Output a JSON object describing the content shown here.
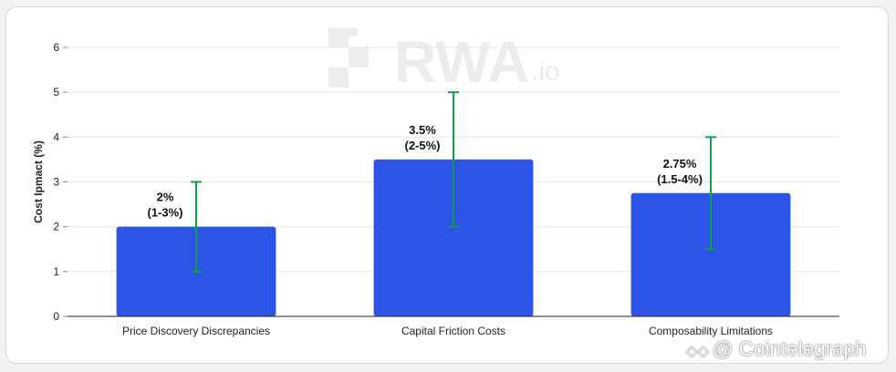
{
  "watermark": {
    "text": "RWA",
    "suffix": ".io"
  },
  "credit": {
    "icon": "cointelegraph-logo-icon",
    "text": "@ Cointelegraph"
  },
  "colors": {
    "bar": "#2c55e8",
    "error_bar": "#159a4e",
    "grid": "#e6e6e6",
    "axis": "#222222",
    "watermark": "#ececec"
  },
  "chart_data": {
    "type": "bar",
    "title": "",
    "xlabel": "",
    "ylabel": "Cost Ipmact (%)",
    "ylim": [
      0,
      6
    ],
    "yticks": [
      0,
      1,
      2,
      3,
      4,
      5,
      6
    ],
    "grid": true,
    "categories": [
      "Price Discovery Discrepancies",
      "Capital Friction Costs",
      "Composability Limitations"
    ],
    "values": [
      2,
      3.5,
      2.75
    ],
    "error_low": [
      1,
      2,
      1.5
    ],
    "error_high": [
      3,
      5,
      4
    ],
    "data_labels": [
      [
        "2%",
        "(1-3%)"
      ],
      [
        "3.5%",
        "(2-5%)"
      ],
      [
        "2.75%",
        "(1.5-4%)"
      ]
    ]
  }
}
